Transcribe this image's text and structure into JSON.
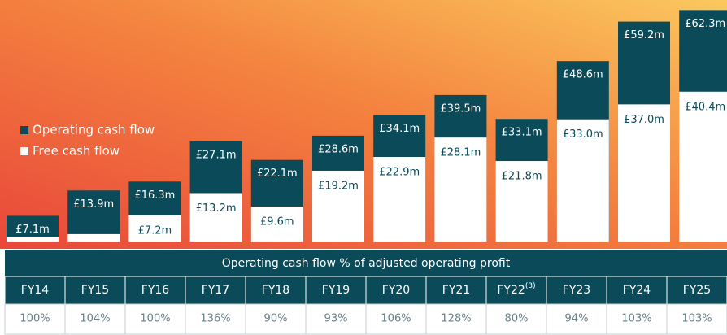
{
  "chart_data": {
    "type": "overlap-bar",
    "categories": [
      "FY14",
      "FY15",
      "FY16",
      "FY17",
      "FY18",
      "FY19",
      "FY20",
      "FY21",
      "FY22",
      "FY23",
      "FY24",
      "FY25"
    ],
    "category_notes": [
      null,
      null,
      null,
      null,
      null,
      null,
      null,
      null,
      "(3)",
      null,
      null,
      null
    ],
    "series": [
      {
        "name": "Operating cash flow",
        "color": "#0b4a59",
        "values": [
          7.1,
          13.9,
          16.3,
          27.1,
          22.1,
          28.6,
          34.1,
          39.5,
          33.1,
          48.6,
          59.2,
          62.3
        ],
        "value_labels": [
          "£7.1m",
          "£13.9m",
          "£16.3m",
          "£27.1m",
          "£22.1m",
          "£28.6m",
          "£34.1m",
          "£39.5m",
          "£33.1m",
          "£48.6m",
          "£59.2m",
          "£62.3m"
        ]
      },
      {
        "name": "Free cash flow",
        "color": "#ffffff",
        "values": [
          1.5,
          2.2,
          7.2,
          13.2,
          9.6,
          19.2,
          22.9,
          28.1,
          21.8,
          33.0,
          37.0,
          40.4
        ],
        "value_labels": [
          null,
          null,
          "£7.2m",
          "£13.2m",
          "£9.6m",
          "£19.2m",
          "£22.9m",
          "£28.1m",
          "£21.8m",
          "£33.0m",
          "£37.0m",
          "£40.4m"
        ]
      }
    ],
    "ylim": [
      0,
      65
    ]
  },
  "table": {
    "title": "Operating cash flow % of adjusted operating profit",
    "values": [
      "100%",
      "104%",
      "100%",
      "136%",
      "90%",
      "93%",
      "106%",
      "128%",
      "80%",
      "94%",
      "103%",
      "103%"
    ]
  }
}
